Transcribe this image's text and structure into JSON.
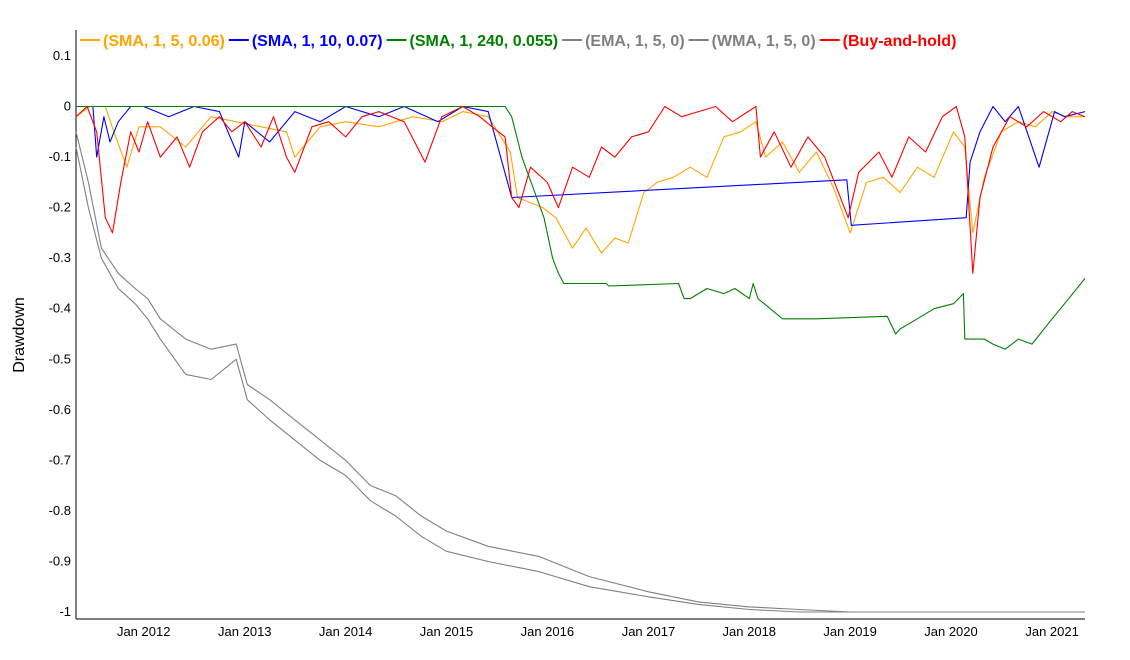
{
  "chart_data": {
    "type": "line",
    "title": "",
    "xlabel": "",
    "ylabel": "Drawdown",
    "xlim": [
      "2011-05-01",
      "2021-04-30"
    ],
    "ylim": [
      -1.0,
      0.1
    ],
    "xticks": [
      "Jan 2012",
      "Jan 2013",
      "Jan 2014",
      "Jan 2015",
      "Jan 2016",
      "Jan 2017",
      "Jan 2018",
      "Jan 2019",
      "Jan 2020",
      "Jan 2021"
    ],
    "xtick_dates": [
      "2012-01-01",
      "2013-01-01",
      "2014-01-01",
      "2015-01-01",
      "2016-01-01",
      "2017-01-01",
      "2018-01-01",
      "2019-01-01",
      "2020-01-01",
      "2021-01-01"
    ],
    "yticks": [
      0.1,
      0,
      -0.1,
      -0.2,
      -0.3,
      -0.4,
      -0.5,
      -0.6,
      -0.7,
      -0.8,
      -0.9,
      -1
    ],
    "ytick_labels": [
      "0.1",
      "0",
      "-0.1",
      "-0.2",
      "-0.3",
      "-0.4",
      "-0.5",
      "-0.6",
      "-0.7",
      "-0.8",
      "-0.9",
      "-1"
    ],
    "grid": true,
    "legend_position": "top",
    "series": [
      {
        "name": "(SMA, 1, 5, 0.06)",
        "color": "#ffa500",
        "x": [
          "2011-05-01",
          "2011-06-20",
          "2011-08-15",
          "2011-09-15",
          "2011-11-01",
          "2011-12-15",
          "2012-03-01",
          "2012-06-01",
          "2012-09-01",
          "2012-12-01",
          "2013-03-01",
          "2013-06-01",
          "2013-07-01",
          "2013-10-01",
          "2014-01-01",
          "2014-05-01",
          "2014-09-01",
          "2014-12-15",
          "2015-03-01",
          "2015-06-01",
          "2015-08-20",
          "2015-09-15",
          "2015-12-15",
          "2016-02-01",
          "2016-04-01",
          "2016-05-20",
          "2016-07-15",
          "2016-09-01",
          "2016-10-20",
          "2016-12-15",
          "2017-02-01",
          "2017-04-01",
          "2017-06-01",
          "2017-08-01",
          "2017-10-01",
          "2017-12-01",
          "2018-01-25",
          "2018-03-01",
          "2018-05-01",
          "2018-07-01",
          "2018-09-01",
          "2018-11-01",
          "2019-01-01",
          "2019-03-01",
          "2019-05-01",
          "2019-07-01",
          "2019-09-01",
          "2019-11-01",
          "2020-01-10",
          "2020-02-20",
          "2020-03-20",
          "2020-05-01",
          "2020-07-01",
          "2020-09-01",
          "2020-11-01",
          "2021-01-01",
          "2021-02-20",
          "2021-04-30"
        ],
        "y": [
          -0.02,
          0,
          0,
          -0.05,
          -0.12,
          -0.04,
          -0.04,
          -0.08,
          -0.02,
          -0.03,
          -0.04,
          -0.05,
          -0.1,
          -0.04,
          -0.03,
          -0.04,
          -0.02,
          -0.03,
          -0.01,
          -0.02,
          -0.09,
          -0.18,
          -0.2,
          -0.22,
          -0.28,
          -0.24,
          -0.29,
          -0.26,
          -0.27,
          -0.17,
          -0.15,
          -0.14,
          -0.12,
          -0.14,
          -0.06,
          -0.05,
          -0.03,
          -0.1,
          -0.07,
          -0.13,
          -0.09,
          -0.16,
          -0.25,
          -0.15,
          -0.14,
          -0.17,
          -0.12,
          -0.14,
          -0.05,
          -0.08,
          -0.25,
          -0.14,
          -0.05,
          -0.03,
          -0.04,
          -0.01,
          -0.02,
          -0.02
        ]
      },
      {
        "name": "(SMA, 1, 10, 0.07)",
        "color": "#0000ff",
        "x": [
          "2011-05-01",
          "2011-07-01",
          "2011-07-15",
          "2011-08-10",
          "2011-09-01",
          "2011-10-01",
          "2011-11-15",
          "2012-01-01",
          "2012-04-01",
          "2012-07-01",
          "2012-10-01",
          "2012-12-10",
          "2013-01-01",
          "2013-04-01",
          "2013-07-01",
          "2013-10-01",
          "2014-01-01",
          "2014-05-01",
          "2014-08-01",
          "2014-12-01",
          "2015-03-01",
          "2015-06-01",
          "2015-08-25",
          "2018-12-20",
          "2019-01-05",
          "2020-02-25",
          "2020-03-10",
          "2020-04-15",
          "2020-06-01",
          "2020-07-15",
          "2020-09-01",
          "2020-11-15",
          "2021-01-10",
          "2021-02-15",
          "2021-04-30"
        ],
        "y": [
          0,
          0,
          -0.1,
          -0.02,
          -0.07,
          -0.03,
          0,
          0,
          -0.02,
          0,
          -0.01,
          -0.1,
          -0.03,
          -0.07,
          -0.01,
          -0.03,
          0,
          -0.02,
          0,
          -0.03,
          0,
          -0.01,
          -0.18,
          -0.145,
          -0.235,
          -0.22,
          -0.11,
          -0.05,
          0,
          -0.03,
          0,
          -0.12,
          -0.01,
          -0.02,
          -0.01
        ]
      },
      {
        "name": "(SMA, 1, 240, 0.055)",
        "color": "#008000",
        "x": [
          "2011-05-01",
          "2015-08-01",
          "2015-08-25",
          "2015-10-01",
          "2015-12-20",
          "2016-01-20",
          "2016-02-10",
          "2016-03-01",
          "2016-08-01",
          "2016-08-10",
          "2017-04-20",
          "2017-05-10",
          "2017-06-01",
          "2017-08-01",
          "2017-10-01",
          "2017-11-10",
          "2018-01-01",
          "2018-01-15",
          "2018-02-01",
          "2018-05-01",
          "2018-09-01",
          "2019-05-15",
          "2019-06-15",
          "2019-07-01",
          "2019-09-01",
          "2019-11-01",
          "2020-01-10",
          "2020-02-15",
          "2020-02-20",
          "2020-05-01",
          "2020-06-01",
          "2020-07-15",
          "2020-09-01",
          "2020-10-20",
          "2021-01-01",
          "2021-02-15",
          "2021-04-30"
        ],
        "y": [
          0,
          0,
          -0.02,
          -0.1,
          -0.22,
          -0.3,
          -0.33,
          -0.35,
          -0.35,
          -0.355,
          -0.35,
          -0.38,
          -0.38,
          -0.36,
          -0.37,
          -0.36,
          -0.38,
          -0.35,
          -0.38,
          -0.42,
          -0.42,
          -0.415,
          -0.45,
          -0.44,
          -0.42,
          -0.4,
          -0.39,
          -0.37,
          -0.46,
          -0.46,
          -0.47,
          -0.48,
          -0.46,
          -0.47,
          -0.42,
          -0.39,
          -0.34
        ]
      },
      {
        "name": "(EMA, 1, 5, 0)",
        "color": "#808080",
        "x": [
          "2011-05-01",
          "2011-06-15",
          "2011-08-01",
          "2011-10-01",
          "2011-12-01",
          "2012-01-15",
          "2012-03-01",
          "2012-06-01",
          "2012-09-01",
          "2012-12-01",
          "2013-01-10",
          "2013-04-01",
          "2013-07-01",
          "2013-10-01",
          "2014-01-01",
          "2014-04-01",
          "2014-07-01",
          "2014-10-01",
          "2015-01-01",
          "2015-06-01",
          "2015-12-01",
          "2016-06-01",
          "2017-01-01",
          "2017-07-01",
          "2018-01-01",
          "2018-07-01",
          "2019-01-01",
          "2019-07-01",
          "2020-01-01",
          "2020-07-01",
          "2021-01-01",
          "2021-04-30"
        ],
        "y": [
          -0.05,
          -0.15,
          -0.28,
          -0.33,
          -0.36,
          -0.38,
          -0.42,
          -0.46,
          -0.48,
          -0.47,
          -0.55,
          -0.58,
          -0.62,
          -0.66,
          -0.7,
          -0.75,
          -0.77,
          -0.81,
          -0.84,
          -0.87,
          -0.89,
          -0.93,
          -0.96,
          -0.98,
          -0.99,
          -0.995,
          -1,
          -1,
          -1,
          -1,
          -1,
          -1
        ]
      },
      {
        "name": "(WMA, 1, 5, 0)",
        "color": "#808080",
        "x": [
          "2011-05-01",
          "2011-06-15",
          "2011-08-01",
          "2011-10-01",
          "2011-12-01",
          "2012-01-15",
          "2012-03-01",
          "2012-06-01",
          "2012-09-01",
          "2012-12-01",
          "2013-01-10",
          "2013-04-01",
          "2013-07-01",
          "2013-10-01",
          "2014-01-01",
          "2014-04-01",
          "2014-07-01",
          "2014-10-01",
          "2015-01-01",
          "2015-06-01",
          "2015-12-01",
          "2016-06-01",
          "2017-01-01",
          "2017-07-01",
          "2018-01-01",
          "2018-07-01",
          "2019-01-01",
          "2019-07-01",
          "2020-01-01",
          "2020-07-01",
          "2021-01-01",
          "2021-04-30"
        ],
        "y": [
          -0.08,
          -0.2,
          -0.3,
          -0.36,
          -0.39,
          -0.42,
          -0.46,
          -0.53,
          -0.54,
          -0.5,
          -0.58,
          -0.62,
          -0.66,
          -0.7,
          -0.73,
          -0.78,
          -0.81,
          -0.85,
          -0.88,
          -0.9,
          -0.92,
          -0.95,
          -0.97,
          -0.985,
          -0.995,
          -1,
          -1,
          -1,
          -1,
          -1,
          -1,
          -1
        ]
      },
      {
        "name": "(Buy-and-hold)",
        "color": "#ff0000",
        "x": [
          "2011-05-01",
          "2011-06-10",
          "2011-07-15",
          "2011-08-15",
          "2011-09-10",
          "2011-10-10",
          "2011-11-15",
          "2011-12-15",
          "2012-01-15",
          "2012-03-01",
          "2012-05-01",
          "2012-06-15",
          "2012-08-01",
          "2012-10-01",
          "2012-11-15",
          "2013-01-01",
          "2013-03-01",
          "2013-04-15",
          "2013-06-01",
          "2013-07-01",
          "2013-09-01",
          "2013-11-01",
          "2014-01-01",
          "2014-03-01",
          "2014-05-01",
          "2014-08-01",
          "2014-10-15",
          "2014-12-15",
          "2015-03-01",
          "2015-05-01",
          "2015-06-15",
          "2015-08-01",
          "2015-08-25",
          "2015-09-20",
          "2015-11-01",
          "2016-01-01",
          "2016-02-10",
          "2016-04-01",
          "2016-06-01",
          "2016-07-15",
          "2016-09-01",
          "2016-11-01",
          "2017-01-01",
          "2017-03-01",
          "2017-05-01",
          "2017-07-01",
          "2017-09-01",
          "2017-11-01",
          "2018-01-25",
          "2018-02-10",
          "2018-04-01",
          "2018-06-01",
          "2018-08-01",
          "2018-10-01",
          "2018-12-25",
          "2019-02-01",
          "2019-04-15",
          "2019-06-01",
          "2019-08-01",
          "2019-10-01",
          "2019-12-01",
          "2020-01-20",
          "2020-02-20",
          "2020-03-20",
          "2020-04-15",
          "2020-06-01",
          "2020-08-01",
          "2020-10-01",
          "2020-12-01",
          "2021-02-01",
          "2021-03-15",
          "2021-04-30"
        ],
        "y": [
          -0.02,
          0,
          -0.05,
          -0.22,
          -0.25,
          -0.15,
          -0.05,
          -0.09,
          -0.03,
          -0.1,
          -0.06,
          -0.12,
          -0.05,
          -0.02,
          -0.05,
          -0.03,
          -0.08,
          -0.02,
          -0.1,
          -0.13,
          -0.04,
          -0.03,
          -0.06,
          -0.02,
          -0.01,
          -0.03,
          -0.11,
          -0.02,
          0,
          -0.02,
          -0.04,
          -0.06,
          -0.18,
          -0.2,
          -0.12,
          -0.15,
          -0.2,
          -0.12,
          -0.14,
          -0.08,
          -0.1,
          -0.06,
          -0.05,
          0,
          -0.02,
          -0.01,
          0,
          -0.03,
          0,
          -0.1,
          -0.05,
          -0.12,
          -0.06,
          -0.1,
          -0.22,
          -0.13,
          -0.09,
          -0.14,
          -0.06,
          -0.09,
          -0.02,
          0,
          -0.06,
          -0.33,
          -0.18,
          -0.08,
          -0.02,
          -0.04,
          -0.01,
          -0.03,
          -0.01,
          -0.02
        ]
      }
    ]
  }
}
